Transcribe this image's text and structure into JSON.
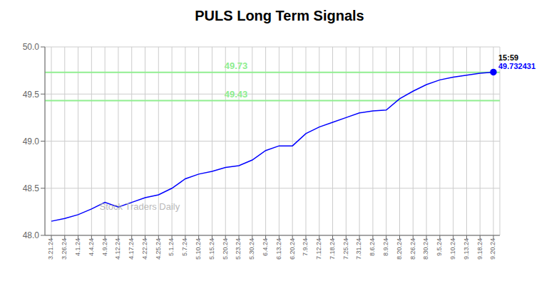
{
  "chart_data": {
    "type": "line",
    "title": "PULS Long Term Signals",
    "watermark": "Stock Traders Daily",
    "categories": [
      "3.21.24",
      "3.26.24",
      "4.1.24",
      "4.4.24",
      "4.9.24",
      "4.12.24",
      "4.17.24",
      "4.22.24",
      "4.25.24",
      "5.1.24",
      "5.7.24",
      "5.10.24",
      "5.15.24",
      "5.20.24",
      "5.23.24",
      "5.30.24",
      "6.4.24",
      "6.13.24",
      "6.20.24",
      "7.9.24",
      "7.12.24",
      "7.18.24",
      "7.25.24",
      "7.31.24",
      "8.6.24",
      "8.9.24",
      "8.20.24",
      "8.26.24",
      "8.30.24",
      "9.5.24",
      "9.10.24",
      "9.13.24",
      "9.18.24",
      "9.20.24"
    ],
    "values": [
      48.15,
      48.18,
      48.22,
      48.28,
      48.35,
      48.3,
      48.35,
      48.4,
      48.43,
      48.5,
      48.6,
      48.65,
      48.68,
      48.72,
      48.74,
      48.8,
      48.9,
      48.95,
      48.95,
      49.08,
      49.15,
      49.2,
      49.25,
      49.3,
      49.32,
      49.33,
      49.45,
      49.53,
      49.6,
      49.65,
      49.68,
      49.7,
      49.72,
      49.732431
    ],
    "color": "#0000FF",
    "marker": "circle",
    "reference_lines": [
      {
        "value": 49.73,
        "label": "49.73",
        "color": "#90EE90"
      },
      {
        "value": 49.43,
        "label": "49.43",
        "color": "#90EE90"
      }
    ],
    "annotations": [
      "15:59",
      "49.732431"
    ],
    "ylim": [
      48,
      50
    ],
    "yticks": [
      {
        "value": 48,
        "label": "48.0"
      },
      48.5,
      {
        "value": 49,
        "label": "49.0"
      },
      49.5,
      {
        "value": 50,
        "label": "50.0"
      }
    ],
    "grid": true
  }
}
